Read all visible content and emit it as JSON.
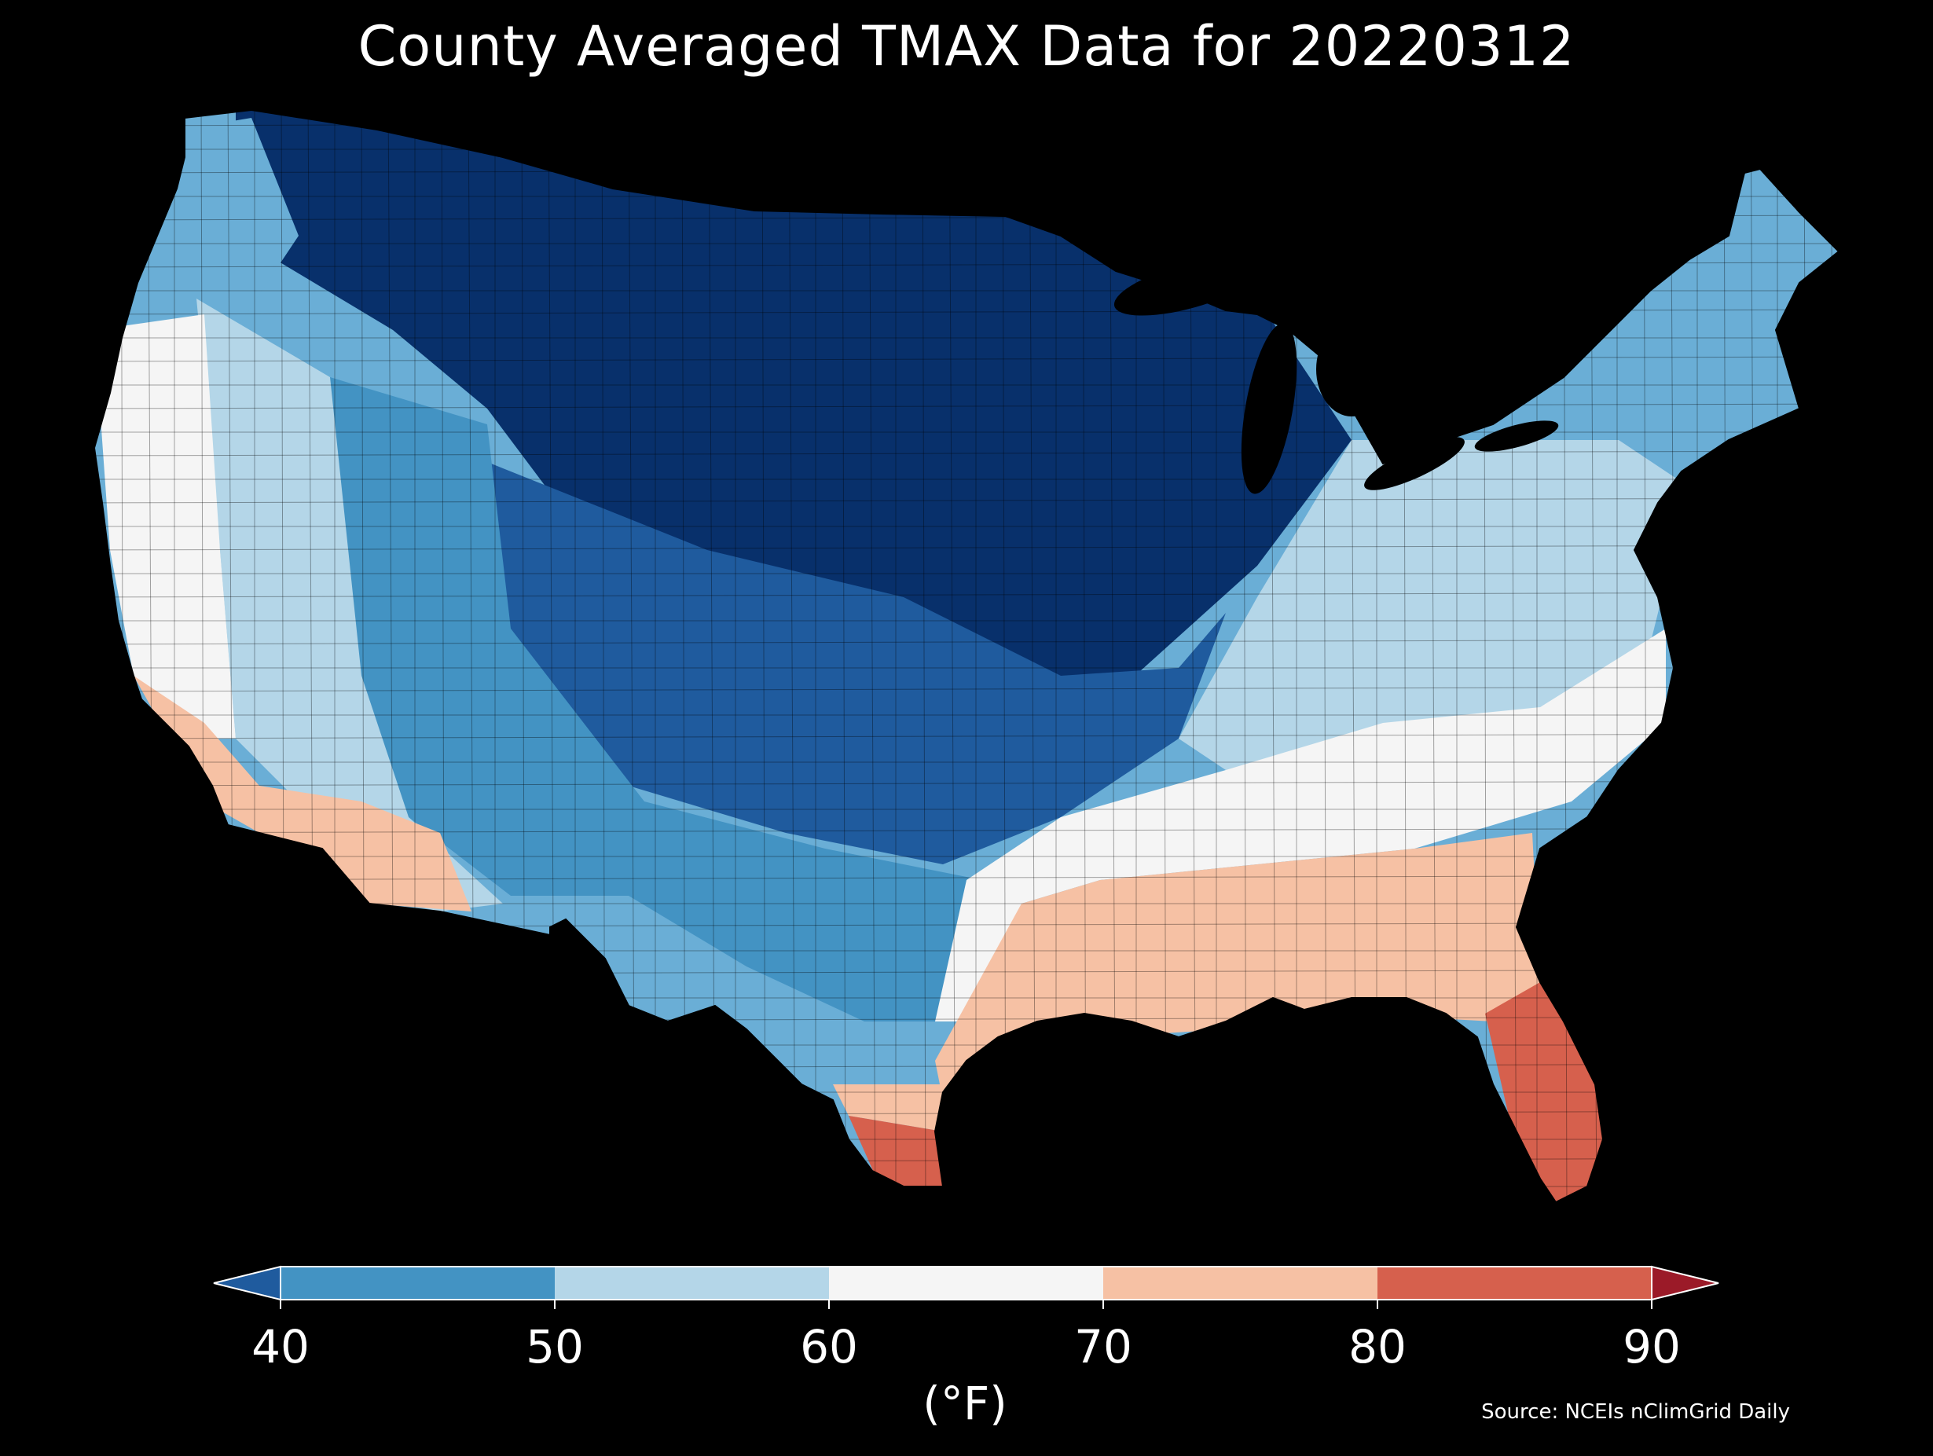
{
  "title": "County Averaged TMAX Data for 20220312",
  "source": "Source: NCEIs nClimGrid Daily",
  "colorbar": {
    "units": "(°F)",
    "ticks": [
      "40",
      "50",
      "60",
      "70",
      "80",
      "90"
    ],
    "bins": [
      {
        "range": "<40",
        "color": "#1f5b9e"
      },
      {
        "range": "40-50",
        "color": "#4393c3"
      },
      {
        "range": "50-60",
        "color": "#b4d6e8"
      },
      {
        "range": "60-70",
        "color": "#f5f5f5"
      },
      {
        "range": "70-80",
        "color": "#f6c1a4"
      },
      {
        "range": "80-90",
        "color": "#d6604d"
      },
      {
        "range": ">90",
        "color": "#9b1a28"
      }
    ],
    "extend": "both",
    "location": "bottom"
  },
  "map": {
    "region": "Contiguous United States",
    "variable": "TMAX",
    "date": "20220312",
    "unit": "°F",
    "boundaries": "counties",
    "background": "#000000",
    "regional_pattern": [
      {
        "region": "Northern Plains / Upper Midwest / Northern Rockies",
        "approx_tmax_f": "<40",
        "color": "#08306b"
      },
      {
        "region": "Central Plains / Colorado / Kansas / Missouri",
        "approx_tmax_f": "35-45",
        "color": "#1f5b9e"
      },
      {
        "region": "Great Basin / Southwest interior / West Texas / Oklahoma",
        "approx_tmax_f": "40-50",
        "color": "#4393c3"
      },
      {
        "region": "Pacific Northwest coast / New England",
        "approx_tmax_f": "40-55",
        "color": "#6aaed6"
      },
      {
        "region": "Nevada / Northern Arizona / Ohio Valley / Mid-Atlantic",
        "approx_tmax_f": "50-60",
        "color": "#b4d6e8"
      },
      {
        "region": "California interior / Appalachia / Carolinas / East Texas",
        "approx_tmax_f": "60-70",
        "color": "#f5f5f5"
      },
      {
        "region": "Southern California / Southern Arizona / Gulf Coast / Georgia",
        "approx_tmax_f": "70-80",
        "color": "#f6c1a4"
      },
      {
        "region": "Florida Peninsula / South Texas",
        "approx_tmax_f": "80-90",
        "color": "#d6604d"
      }
    ]
  }
}
